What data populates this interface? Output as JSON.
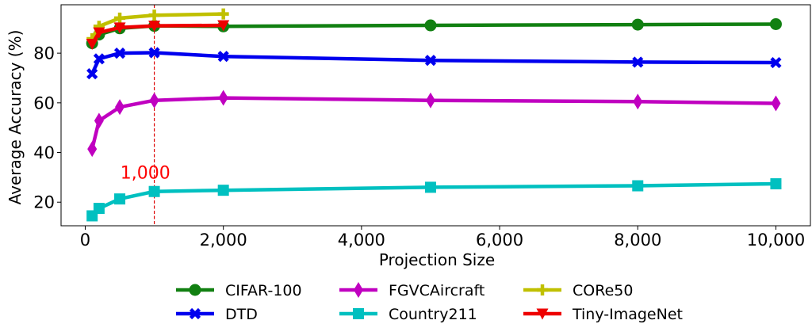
{
  "chart_data": {
    "type": "line",
    "title": "",
    "xlabel": "Projection Size",
    "ylabel": "Average Accuracy (%)",
    "xlim": [
      -350,
      10500
    ],
    "ylim": [
      10.5,
      99.5
    ],
    "xticks": [
      0,
      2000,
      4000,
      6000,
      8000,
      10000
    ],
    "xtick_labels": [
      "0",
      "2,000",
      "4,000",
      "6,000",
      "8,000",
      "10,000"
    ],
    "yticks": [
      20,
      40,
      60,
      80
    ],
    "ytick_labels": [
      "20",
      "40",
      "60",
      "80"
    ],
    "grid": false,
    "legend_position": "bottom",
    "vline": {
      "x": 1000,
      "color": "#dd0000",
      "style": "dashed"
    },
    "annotations": [
      {
        "text": "1,000",
        "x": 870,
        "y": 29.5,
        "color": "#ff0000"
      }
    ],
    "series": [
      {
        "name": "CIFAR-100",
        "color": "#118011",
        "marker": "circle",
        "x": [
          100,
          200,
          500,
          1000,
          2000,
          5000,
          8000,
          10000
        ],
        "y": [
          84,
          87.5,
          90,
          91,
          90.8,
          91.2,
          91.5,
          91.7
        ]
      },
      {
        "name": "DTD",
        "color": "#0000ee",
        "marker": "x",
        "x": [
          100,
          200,
          500,
          1000,
          2000,
          5000,
          8000,
          10000
        ],
        "y": [
          71.7,
          77.7,
          80,
          80.2,
          78.7,
          77.1,
          76.4,
          76.2
        ]
      },
      {
        "name": "FGVCAircraft",
        "color": "#c000c0",
        "marker": "diamond",
        "x": [
          100,
          200,
          500,
          1000,
          2000,
          5000,
          8000,
          10000
        ],
        "y": [
          41.4,
          52.8,
          58.3,
          61,
          62,
          61,
          60.5,
          59.8
        ]
      },
      {
        "name": "Country211",
        "color": "#00c0c0",
        "marker": "square",
        "x": [
          100,
          200,
          500,
          1000,
          2000,
          5000,
          8000,
          10000
        ],
        "y": [
          14.5,
          17.5,
          21.3,
          24.3,
          24.8,
          26,
          26.6,
          27.4
        ]
      },
      {
        "name": "CORe50",
        "color": "#c0c000",
        "marker": "plus",
        "x": [
          100,
          200,
          500,
          1000,
          2000
        ],
        "y": [
          85.8,
          90.8,
          94.1,
          95.3,
          95.8
        ]
      },
      {
        "name": "Tiny-ImageNet",
        "color": "#ee0000",
        "marker": "triangle-down",
        "x": [
          100,
          200,
          500,
          1000,
          2000
        ],
        "y": [
          83.7,
          88.3,
          90.3,
          91,
          91.2
        ]
      }
    ]
  }
}
